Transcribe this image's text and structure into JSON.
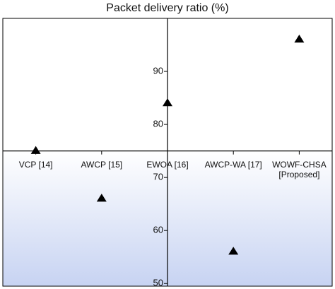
{
  "chart_data": {
    "type": "scatter",
    "title": "Packet delivery ratio (%)",
    "categories": [
      "VCP [14]",
      "AWCP [15]",
      "EWOA [16]",
      "AWCP-WA [17]",
      "WOWF-CHSA [Proposed]"
    ],
    "values": [
      75,
      66,
      84,
      56,
      96
    ],
    "color": "#000000",
    "marker": "triangle",
    "ylim": [
      49.5,
      100
    ],
    "yticks": [
      50,
      60,
      70,
      80,
      90
    ],
    "x_axis_crossing": 75,
    "lower_shading": "#c7d3f2"
  }
}
